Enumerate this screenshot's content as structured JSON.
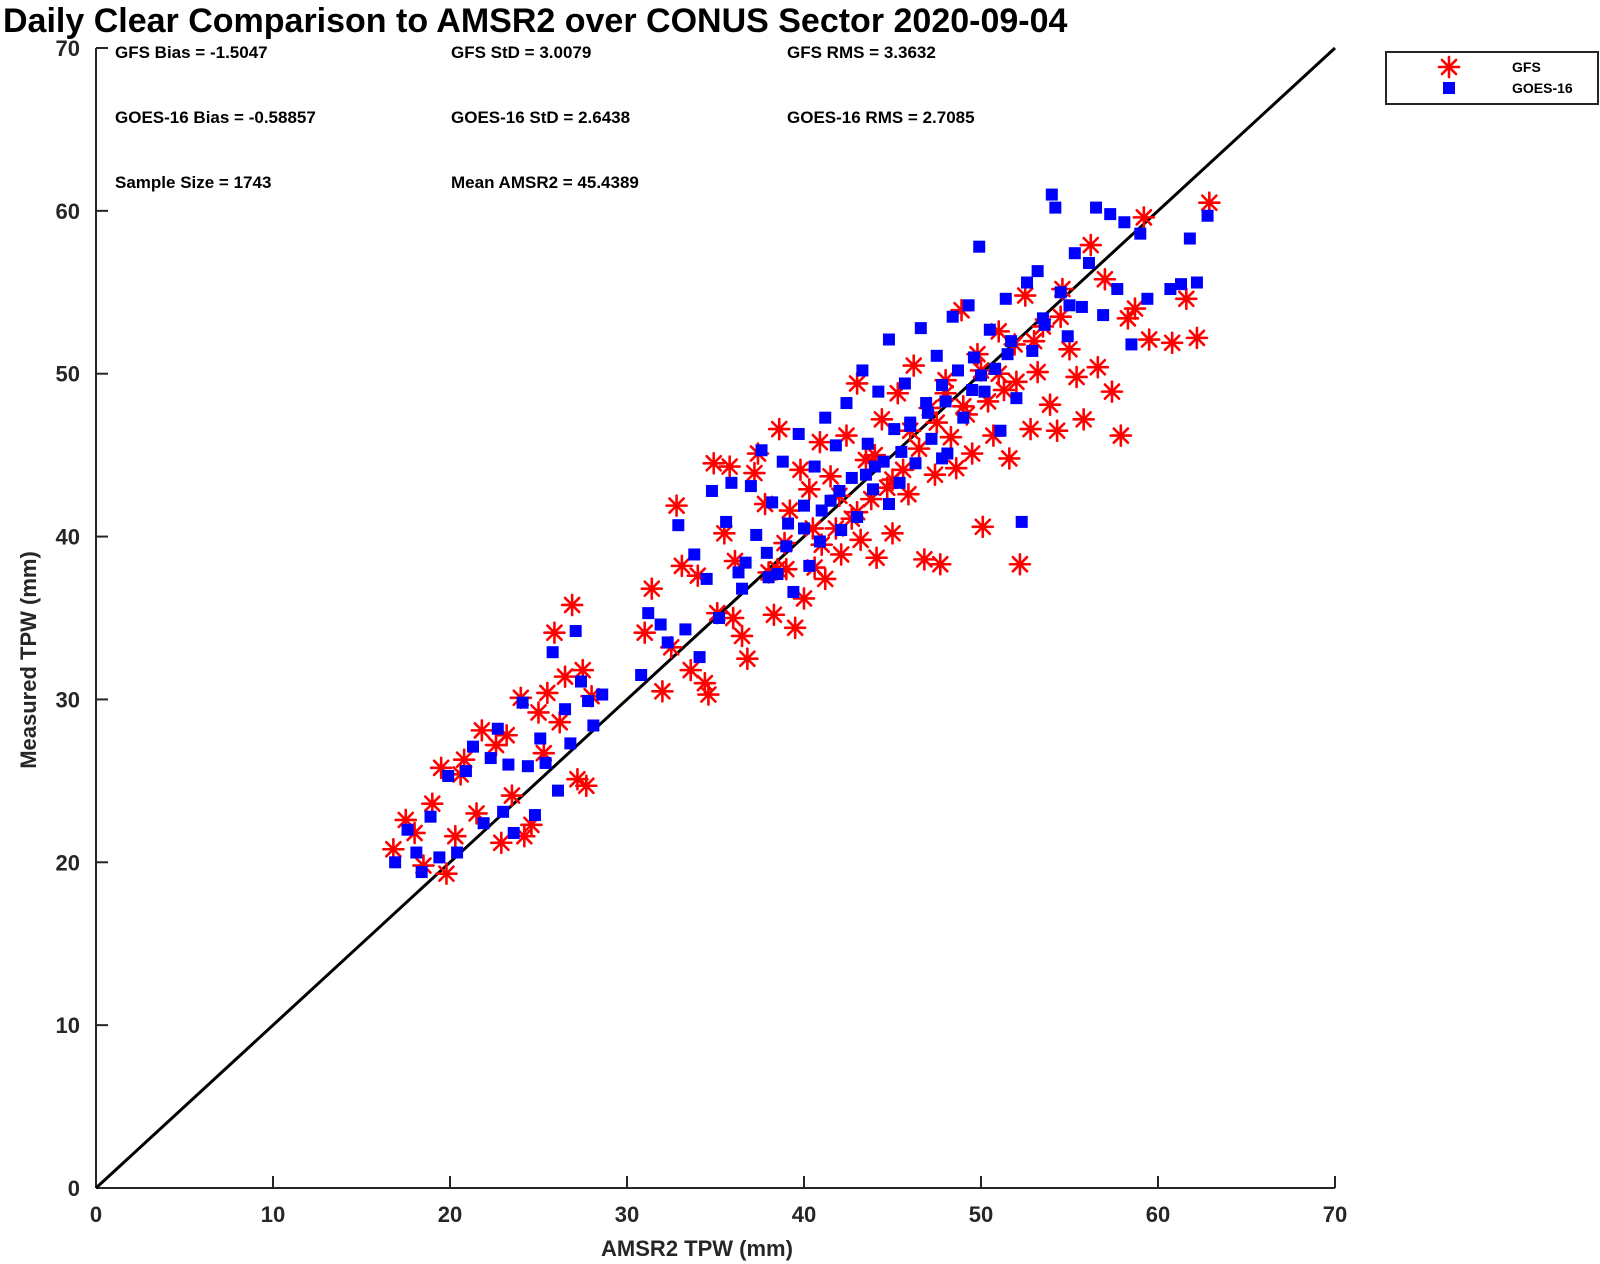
{
  "chart_data": {
    "type": "scatter",
    "title": "Daily Clear Comparison to AMSR2 over CONUS Sector 2020-09-04",
    "xlabel": "AMSR2 TPW (mm)",
    "ylabel": "Measured TPW (mm)",
    "xlim": [
      0,
      70
    ],
    "ylim": [
      0,
      70
    ],
    "xticks": [
      0,
      10,
      20,
      30,
      40,
      50,
      60,
      70
    ],
    "yticks": [
      0,
      10,
      20,
      30,
      40,
      50,
      60,
      70
    ],
    "xtick_labels": [
      "0",
      "10",
      "20",
      "30",
      "40",
      "50",
      "60",
      "70"
    ],
    "ytick_labels": [
      "0",
      "10",
      "20",
      "30",
      "40",
      "50",
      "60",
      "70"
    ],
    "grid": false,
    "legend_position": "top-right, outside plot",
    "reference_line": {
      "from": [
        0,
        0
      ],
      "to": [
        70,
        70
      ],
      "color": "#000000"
    },
    "stats": {
      "gfs_bias": "GFS Bias = -1.5047",
      "gfs_std": "GFS StD = 3.0079",
      "gfs_rms": "GFS RMS = 3.3632",
      "goes_bias": "GOES-16 Bias = -0.58857",
      "goes_std": "GOES-16 StD = 2.6438",
      "goes_rms": "GOES-16 RMS = 2.7085",
      "sample_size": "Sample Size = 1743",
      "mean_amsr2": "Mean AMSR2 = 45.4389"
    },
    "series": [
      {
        "name": "GFS",
        "marker": "asterisk",
        "color": "#ff0000",
        "points": [
          [
            16.8,
            20.8
          ],
          [
            17.5,
            22.6
          ],
          [
            18.0,
            21.8
          ],
          [
            18.5,
            19.8
          ],
          [
            19.0,
            23.6
          ],
          [
            19.5,
            25.8
          ],
          [
            19.8,
            19.3
          ],
          [
            20.3,
            21.6
          ],
          [
            20.6,
            25.4
          ],
          [
            20.8,
            26.3
          ],
          [
            21.5,
            23.0
          ],
          [
            21.8,
            28.1
          ],
          [
            22.6,
            27.2
          ],
          [
            22.9,
            21.2
          ],
          [
            23.2,
            27.8
          ],
          [
            23.5,
            24.1
          ],
          [
            24.0,
            30.1
          ],
          [
            24.2,
            21.6
          ],
          [
            24.6,
            22.3
          ],
          [
            25.0,
            29.2
          ],
          [
            25.3,
            26.7
          ],
          [
            25.5,
            30.4
          ],
          [
            25.9,
            34.1
          ],
          [
            26.2,
            28.6
          ],
          [
            26.5,
            31.4
          ],
          [
            26.9,
            35.8
          ],
          [
            27.2,
            25.1
          ],
          [
            27.5,
            31.8
          ],
          [
            27.7,
            24.7
          ],
          [
            28.0,
            30.2
          ],
          [
            31.0,
            34.1
          ],
          [
            31.4,
            36.8
          ],
          [
            32.0,
            30.5
          ],
          [
            32.5,
            33.2
          ],
          [
            32.8,
            41.9
          ],
          [
            33.1,
            38.2
          ],
          [
            33.6,
            31.8
          ],
          [
            34.0,
            37.6
          ],
          [
            34.4,
            31.0
          ],
          [
            34.6,
            30.3
          ],
          [
            34.9,
            44.5
          ],
          [
            35.1,
            35.3
          ],
          [
            35.5,
            40.2
          ],
          [
            35.8,
            44.3
          ],
          [
            36.1,
            38.5
          ],
          [
            36.5,
            33.9
          ],
          [
            36.8,
            32.5
          ],
          [
            37.2,
            43.9
          ],
          [
            37.4,
            45.1
          ],
          [
            37.8,
            42.0
          ],
          [
            38.0,
            37.8
          ],
          [
            38.3,
            35.2
          ],
          [
            38.6,
            46.6
          ],
          [
            38.9,
            39.6
          ],
          [
            39.2,
            41.6
          ],
          [
            39.5,
            34.4
          ],
          [
            39.8,
            44.1
          ],
          [
            40.0,
            36.2
          ],
          [
            40.3,
            42.9
          ],
          [
            40.6,
            38.1
          ],
          [
            40.9,
            45.8
          ],
          [
            41.2,
            37.4
          ],
          [
            41.5,
            43.7
          ],
          [
            41.8,
            40.5
          ],
          [
            42.1,
            38.9
          ],
          [
            42.4,
            46.2
          ],
          [
            42.7,
            41.1
          ],
          [
            43.0,
            49.4
          ],
          [
            43.2,
            39.8
          ],
          [
            43.5,
            44.7
          ],
          [
            43.8,
            42.3
          ],
          [
            44.1,
            38.7
          ],
          [
            44.4,
            47.2
          ],
          [
            44.7,
            43.0
          ],
          [
            45.0,
            40.2
          ],
          [
            45.3,
            48.8
          ],
          [
            45.6,
            44.1
          ],
          [
            45.9,
            42.6
          ],
          [
            46.2,
            50.5
          ],
          [
            46.5,
            45.4
          ],
          [
            46.8,
            38.6
          ],
          [
            47.1,
            47.9
          ],
          [
            47.4,
            43.8
          ],
          [
            47.7,
            38.3
          ],
          [
            48.0,
            49.6
          ],
          [
            48.3,
            46.1
          ],
          [
            48.6,
            44.2
          ],
          [
            48.9,
            53.9
          ],
          [
            49.2,
            47.5
          ],
          [
            49.5,
            45.1
          ],
          [
            49.8,
            51.2
          ],
          [
            50.1,
            40.6
          ],
          [
            50.4,
            48.3
          ],
          [
            50.7,
            46.2
          ],
          [
            51.0,
            52.6
          ],
          [
            51.3,
            49.0
          ],
          [
            51.6,
            44.8
          ],
          [
            51.9,
            51.8
          ],
          [
            52.2,
            38.3
          ],
          [
            52.5,
            54.8
          ],
          [
            52.8,
            46.6
          ],
          [
            53.2,
            50.1
          ],
          [
            53.5,
            52.9
          ],
          [
            53.9,
            48.1
          ],
          [
            54.3,
            46.5
          ],
          [
            54.6,
            55.2
          ],
          [
            55.0,
            51.5
          ],
          [
            55.4,
            49.8
          ],
          [
            55.8,
            47.2
          ],
          [
            56.2,
            57.9
          ],
          [
            56.6,
            50.4
          ],
          [
            57.0,
            55.8
          ],
          [
            57.4,
            48.9
          ],
          [
            57.9,
            46.2
          ],
          [
            58.3,
            53.4
          ],
          [
            58.7,
            54.0
          ],
          [
            59.2,
            59.6
          ],
          [
            59.5,
            52.1
          ],
          [
            60.8,
            51.9
          ],
          [
            61.6,
            54.6
          ],
          [
            62.2,
            52.2
          ],
          [
            62.9,
            60.5
          ],
          [
            39.0,
            38.0
          ],
          [
            41.0,
            39.5
          ],
          [
            44.0,
            45.0
          ],
          [
            46.0,
            46.5
          ],
          [
            48.0,
            48.8
          ],
          [
            50.0,
            50.2
          ],
          [
            42.0,
            42.5
          ],
          [
            47.5,
            47.0
          ],
          [
            45.0,
            43.5
          ],
          [
            43.0,
            41.5
          ],
          [
            49.0,
            48.0
          ],
          [
            51.0,
            50.0
          ],
          [
            53.0,
            52.0
          ],
          [
            40.5,
            40.5
          ],
          [
            38.5,
            38.0
          ],
          [
            52.0,
            49.5
          ],
          [
            54.5,
            53.5
          ],
          [
            36.0,
            35.0
          ]
        ]
      },
      {
        "name": "GOES-16",
        "marker": "square",
        "color": "#0000ff",
        "points": [
          [
            16.9,
            20.0
          ],
          [
            17.6,
            22.0
          ],
          [
            18.1,
            20.6
          ],
          [
            18.4,
            19.4
          ],
          [
            18.9,
            22.8
          ],
          [
            19.4,
            20.3
          ],
          [
            19.9,
            25.3
          ],
          [
            20.4,
            20.6
          ],
          [
            20.9,
            25.6
          ],
          [
            21.3,
            27.1
          ],
          [
            21.9,
            22.4
          ],
          [
            22.3,
            26.4
          ],
          [
            22.7,
            28.2
          ],
          [
            23.0,
            23.1
          ],
          [
            23.3,
            26.0
          ],
          [
            23.6,
            21.8
          ],
          [
            24.1,
            29.8
          ],
          [
            24.4,
            25.9
          ],
          [
            24.8,
            22.9
          ],
          [
            25.1,
            27.6
          ],
          [
            25.4,
            26.1
          ],
          [
            25.8,
            32.9
          ],
          [
            26.1,
            24.4
          ],
          [
            26.5,
            29.4
          ],
          [
            26.8,
            27.3
          ],
          [
            27.1,
            34.2
          ],
          [
            27.4,
            31.1
          ],
          [
            27.8,
            29.9
          ],
          [
            28.1,
            28.4
          ],
          [
            28.6,
            30.3
          ],
          [
            30.8,
            31.5
          ],
          [
            31.2,
            35.3
          ],
          [
            31.9,
            34.6
          ],
          [
            32.3,
            33.5
          ],
          [
            32.9,
            40.7
          ],
          [
            33.3,
            34.3
          ],
          [
            33.8,
            38.9
          ],
          [
            34.1,
            32.6
          ],
          [
            34.5,
            37.4
          ],
          [
            34.8,
            42.8
          ],
          [
            35.2,
            35.0
          ],
          [
            35.6,
            40.9
          ],
          [
            35.9,
            43.3
          ],
          [
            36.3,
            37.8
          ],
          [
            36.7,
            38.4
          ],
          [
            37.0,
            43.1
          ],
          [
            37.3,
            40.1
          ],
          [
            37.6,
            45.3
          ],
          [
            37.9,
            39.0
          ],
          [
            38.2,
            42.1
          ],
          [
            38.5,
            37.7
          ],
          [
            38.8,
            44.6
          ],
          [
            39.1,
            40.8
          ],
          [
            39.4,
            36.6
          ],
          [
            39.7,
            46.3
          ],
          [
            40.0,
            41.9
          ],
          [
            40.3,
            38.2
          ],
          [
            40.6,
            44.3
          ],
          [
            40.9,
            39.7
          ],
          [
            41.2,
            47.3
          ],
          [
            41.5,
            42.2
          ],
          [
            41.8,
            45.6
          ],
          [
            42.1,
            40.4
          ],
          [
            42.4,
            48.2
          ],
          [
            42.7,
            43.6
          ],
          [
            43.0,
            41.2
          ],
          [
            43.3,
            50.2
          ],
          [
            43.6,
            45.7
          ],
          [
            43.9,
            42.9
          ],
          [
            44.2,
            48.9
          ],
          [
            44.5,
            44.6
          ],
          [
            44.8,
            52.1
          ],
          [
            45.1,
            46.6
          ],
          [
            45.4,
            43.3
          ],
          [
            45.7,
            49.4
          ],
          [
            46.0,
            47.0
          ],
          [
            46.3,
            44.5
          ],
          [
            46.6,
            52.8
          ],
          [
            46.9,
            48.2
          ],
          [
            47.2,
            46.0
          ],
          [
            47.5,
            51.1
          ],
          [
            47.8,
            49.3
          ],
          [
            48.1,
            45.1
          ],
          [
            48.4,
            53.5
          ],
          [
            48.7,
            50.2
          ],
          [
            49.0,
            47.3
          ],
          [
            49.3,
            54.2
          ],
          [
            49.6,
            51.0
          ],
          [
            49.9,
            57.8
          ],
          [
            50.2,
            48.9
          ],
          [
            50.5,
            52.7
          ],
          [
            50.8,
            50.3
          ],
          [
            51.1,
            46.5
          ],
          [
            51.4,
            54.6
          ],
          [
            51.7,
            52.0
          ],
          [
            52.0,
            48.5
          ],
          [
            52.3,
            40.9
          ],
          [
            52.6,
            55.6
          ],
          [
            52.9,
            51.4
          ],
          [
            53.2,
            56.3
          ],
          [
            53.6,
            53.0
          ],
          [
            54.0,
            61.0
          ],
          [
            54.2,
            60.2
          ],
          [
            54.5,
            55.0
          ],
          [
            54.9,
            52.3
          ],
          [
            55.3,
            57.4
          ],
          [
            55.7,
            54.1
          ],
          [
            56.1,
            56.8
          ],
          [
            56.5,
            60.2
          ],
          [
            56.9,
            53.6
          ],
          [
            57.3,
            59.8
          ],
          [
            57.7,
            55.2
          ],
          [
            58.1,
            59.3
          ],
          [
            58.5,
            51.8
          ],
          [
            59.0,
            58.6
          ],
          [
            59.4,
            54.6
          ],
          [
            60.7,
            55.2
          ],
          [
            61.3,
            55.5
          ],
          [
            61.8,
            58.3
          ],
          [
            62.2,
            55.6
          ],
          [
            62.8,
            59.7
          ],
          [
            40.0,
            40.5
          ],
          [
            42.0,
            42.8
          ],
          [
            44.0,
            44.3
          ],
          [
            46.0,
            46.8
          ],
          [
            48.0,
            48.3
          ],
          [
            50.0,
            49.9
          ],
          [
            45.5,
            45.2
          ],
          [
            43.5,
            43.8
          ],
          [
            47.0,
            47.6
          ],
          [
            41.0,
            41.6
          ],
          [
            39.0,
            39.4
          ],
          [
            49.5,
            49.0
          ],
          [
            51.5,
            51.2
          ],
          [
            53.5,
            53.4
          ],
          [
            38.0,
            37.5
          ],
          [
            36.5,
            36.8
          ],
          [
            55.0,
            54.2
          ],
          [
            44.8,
            42.0
          ],
          [
            47.8,
            44.8
          ]
        ]
      }
    ]
  }
}
